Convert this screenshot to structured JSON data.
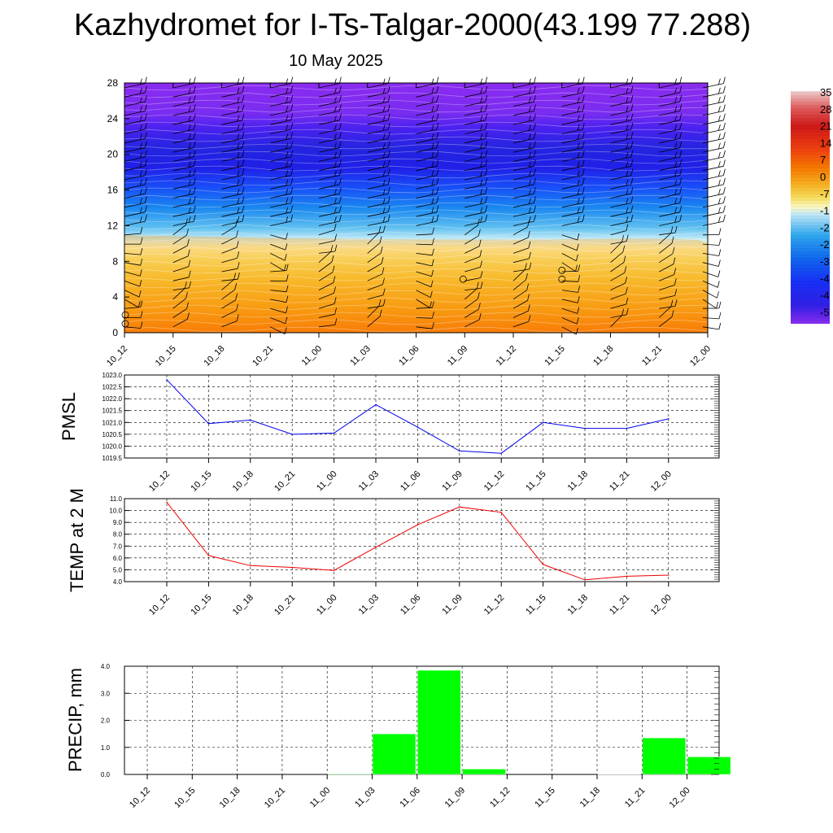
{
  "header": {
    "title": "Kazhydromet for I-Ts-Talgar-2000(43.199 77.288)",
    "date": "10 May 2025"
  },
  "time_labels": [
    "10_12",
    "10_15",
    "10_18",
    "10_21",
    "11_00",
    "11_03",
    "11_06",
    "11_09",
    "11_12",
    "11_15",
    "11_18",
    "11_21",
    "12_00"
  ],
  "colors": {
    "pmsl_line": "#0000ee",
    "temp_line": "#ee0000",
    "precip_fill": "#00ff00"
  },
  "chart_data": [
    {
      "type": "heatmap",
      "name": "cross-section",
      "x": [
        "10_12",
        "10_15",
        "10_18",
        "10_21",
        "11_00",
        "11_03",
        "11_06",
        "11_09",
        "11_12",
        "11_15",
        "11_18",
        "11_21",
        "12_00"
      ],
      "ylim": [
        0,
        28
      ],
      "yticks": [
        "0",
        "4",
        "8",
        "12",
        "16",
        "20",
        "24",
        "28"
      ],
      "colorbar_labels": [
        "35",
        "28",
        "21",
        "14",
        "7",
        "0",
        "-7",
        "-1",
        "-2",
        "-2",
        "-3",
        "-4",
        "-4",
        "-5"
      ],
      "colorbar_colors": [
        "#e8bcbc",
        "#e03030",
        "#c81010",
        "#f04010",
        "#f86a00",
        "#f89a10",
        "#f8d040",
        "#fcf7b0",
        "#b8e8f8",
        "#40b0f0",
        "#1080f0",
        "#1840ff",
        "#2020e0",
        "#3c1cf0",
        "#8a2cf0"
      ]
    },
    {
      "type": "line",
      "ylabel": "PMSL",
      "ylim": [
        1019.5,
        1023.0
      ],
      "yticks": [
        "1019.5",
        "1020.0",
        "1020.5",
        "1021.0",
        "1021.5",
        "1022.0",
        "1022.5",
        "1023.0"
      ],
      "x": [
        "10_12",
        "10_15",
        "10_18",
        "10_21",
        "11_00",
        "11_03",
        "11_06",
        "11_09",
        "11_12",
        "11_15",
        "11_18",
        "11_21",
        "12_00"
      ],
      "series": [
        {
          "values": [
            1022.8,
            1020.95,
            1021.1,
            1020.5,
            1020.55,
            1021.75,
            1020.8,
            1019.8,
            1019.7,
            1021.0,
            1020.75,
            1020.75,
            1021.15
          ]
        }
      ]
    },
    {
      "type": "line",
      "ylabel": "TEMP at 2 M",
      "ylim": [
        4.0,
        11.0
      ],
      "yticks": [
        "4.0",
        "5.0",
        "6.0",
        "7.0",
        "8.0",
        "9.0",
        "10.0",
        "11.0"
      ],
      "x": [
        "10_12",
        "10_15",
        "10_18",
        "10_21",
        "11_00",
        "11_03",
        "11_06",
        "11_09",
        "11_12",
        "11_15",
        "11_18",
        "11_21",
        "12_00"
      ],
      "series": [
        {
          "values": [
            10.7,
            6.2,
            5.35,
            5.2,
            4.95,
            6.9,
            8.8,
            10.3,
            9.85,
            5.45,
            4.15,
            4.45,
            4.55
          ]
        }
      ]
    },
    {
      "type": "bar",
      "ylabel": "PRECIP, mm",
      "ylim": [
        0.0,
        4.0
      ],
      "yticks": [
        "0.0",
        "1.0",
        "2.0",
        "3.0",
        "4.0"
      ],
      "categories": [
        "10_12",
        "10_15",
        "10_18",
        "10_21",
        "11_00",
        "11_03",
        "11_06",
        "11_09",
        "11_12",
        "11_15",
        "11_18",
        "11_21",
        "12_00"
      ],
      "values": [
        0.0,
        0.0,
        0.0,
        0.0,
        0.02,
        1.5,
        3.85,
        0.2,
        0.0,
        0.0,
        0.01,
        1.35,
        0.65
      ]
    }
  ]
}
